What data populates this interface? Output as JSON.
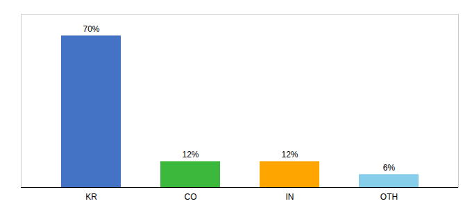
{
  "chart_data": {
    "type": "bar",
    "categories": [
      "KR",
      "CO",
      "IN",
      "OTH"
    ],
    "values": [
      70,
      12,
      12,
      6
    ],
    "value_labels": [
      "70%",
      "12%",
      "12%",
      "6%"
    ],
    "colors": [
      "#4472C4",
      "#3CB93C",
      "#FFA500",
      "#87CEEB"
    ],
    "ylim": [
      0,
      80
    ],
    "data_labels": true,
    "tick_labels": "x"
  }
}
